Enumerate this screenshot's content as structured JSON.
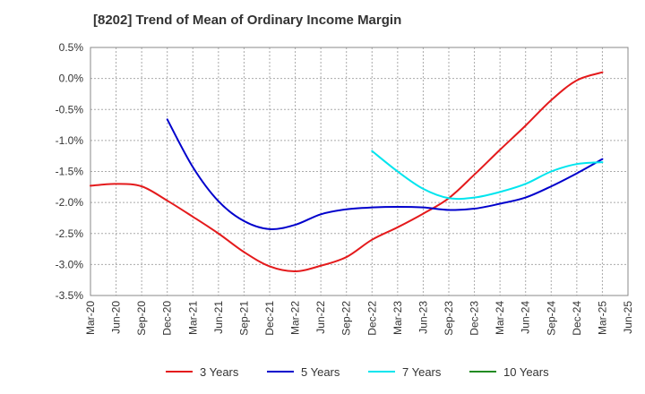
{
  "chart_data": {
    "type": "line",
    "title": "[8202]  Trend of Mean of Ordinary Income Margin",
    "xlabel": "",
    "ylabel": "",
    "ylim": [
      -3.5,
      0.5
    ],
    "ytick_step": 0.5,
    "y_unit": "%",
    "x_categories": [
      "Mar-20",
      "Jun-20",
      "Sep-20",
      "Dec-20",
      "Mar-21",
      "Jun-21",
      "Sep-21",
      "Dec-21",
      "Mar-22",
      "Jun-22",
      "Sep-22",
      "Dec-22",
      "Mar-23",
      "Jun-23",
      "Sep-23",
      "Dec-23",
      "Mar-24",
      "Jun-24",
      "Sep-24",
      "Dec-24",
      "Mar-25",
      "Jun-25"
    ],
    "grid": true,
    "legend_position": "bottom",
    "series": [
      {
        "name": "3 Years",
        "color": "#e41a1c",
        "points": [
          [
            "Mar-20",
            -1.73
          ],
          [
            "Jun-20",
            -1.7
          ],
          [
            "Sep-20",
            -1.74
          ],
          [
            "Dec-20",
            -1.97
          ],
          [
            "Mar-21",
            -2.23
          ],
          [
            "Jun-21",
            -2.5
          ],
          [
            "Sep-21",
            -2.8
          ],
          [
            "Dec-21",
            -3.03
          ],
          [
            "Mar-22",
            -3.11
          ],
          [
            "Jun-22",
            -3.02
          ],
          [
            "Sep-22",
            -2.88
          ],
          [
            "Dec-22",
            -2.6
          ],
          [
            "Mar-23",
            -2.4
          ],
          [
            "Jun-23",
            -2.18
          ],
          [
            "Sep-23",
            -1.93
          ],
          [
            "Dec-23",
            -1.55
          ],
          [
            "Mar-24",
            -1.15
          ],
          [
            "Jun-24",
            -0.76
          ],
          [
            "Sep-24",
            -0.35
          ],
          [
            "Dec-24",
            -0.03
          ],
          [
            "Mar-25",
            0.1
          ]
        ]
      },
      {
        "name": "5 Years",
        "color": "#0000cc",
        "points": [
          [
            "Dec-20",
            -0.66
          ],
          [
            "Mar-21",
            -1.43
          ],
          [
            "Jun-21",
            -1.98
          ],
          [
            "Sep-21",
            -2.3
          ],
          [
            "Dec-21",
            -2.43
          ],
          [
            "Mar-22",
            -2.36
          ],
          [
            "Jun-22",
            -2.19
          ],
          [
            "Sep-22",
            -2.11
          ],
          [
            "Dec-22",
            -2.08
          ],
          [
            "Mar-23",
            -2.07
          ],
          [
            "Jun-23",
            -2.08
          ],
          [
            "Sep-23",
            -2.12
          ],
          [
            "Dec-23",
            -2.1
          ],
          [
            "Mar-24",
            -2.02
          ],
          [
            "Jun-24",
            -1.92
          ],
          [
            "Sep-24",
            -1.74
          ],
          [
            "Dec-24",
            -1.53
          ],
          [
            "Mar-25",
            -1.3
          ]
        ]
      },
      {
        "name": "7 Years",
        "color": "#00e5ee",
        "points": [
          [
            "Dec-22",
            -1.17
          ],
          [
            "Mar-23",
            -1.5
          ],
          [
            "Jun-23",
            -1.78
          ],
          [
            "Sep-23",
            -1.93
          ],
          [
            "Dec-23",
            -1.92
          ],
          [
            "Mar-24",
            -1.83
          ],
          [
            "Jun-24",
            -1.7
          ],
          [
            "Sep-24",
            -1.5
          ],
          [
            "Dec-24",
            -1.38
          ],
          [
            "Mar-25",
            -1.35
          ]
        ]
      },
      {
        "name": "10 Years",
        "color": "#228b22",
        "points": []
      }
    ]
  }
}
